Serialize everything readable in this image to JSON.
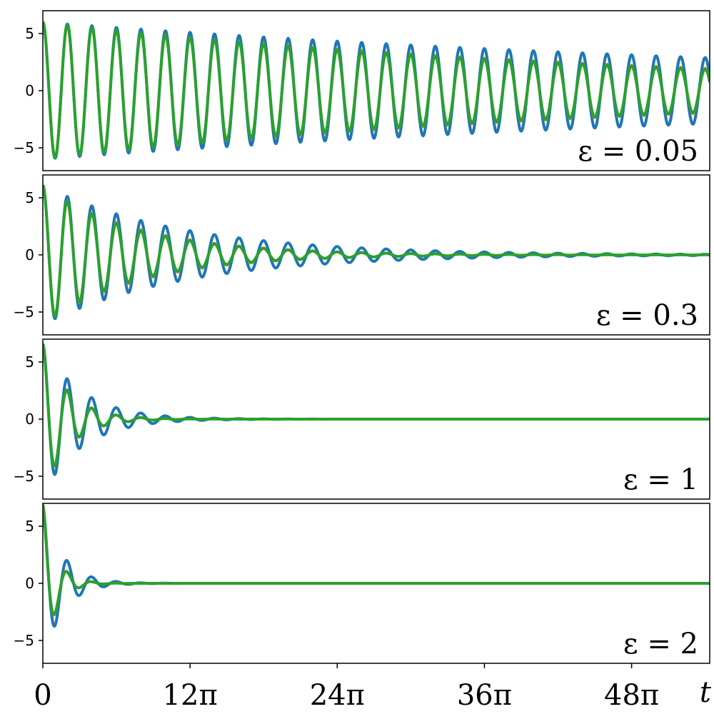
{
  "chart_data": {
    "type": "line",
    "x_axis": {
      "label": "t",
      "range": [
        0,
        170.8
      ],
      "ticks": [
        0,
        37.699,
        75.398,
        113.097,
        150.796
      ],
      "tick_labels": [
        "0",
        "12π",
        "24π",
        "36π",
        "48π"
      ]
    },
    "colors": {
      "series_1": "#1f77b4",
      "series_2": "#ff7f0e",
      "series_3": "#2ca02c"
    },
    "panels": [
      {
        "label": "ε = 0.05",
        "ylim": [
          -7,
          7
        ],
        "yticks": [
          -5,
          0,
          5
        ],
        "ytick_labels": [
          "−5",
          "0",
          "5"
        ],
        "series": [
          {
            "color": "#1f77b4",
            "amplitude": 6.0,
            "decay": 0.0043,
            "period": 6.283,
            "phase": 0.0
          },
          {
            "color": "#ff7f0e",
            "amplitude": 6.0,
            "decay": 0.0065,
            "period": 6.283,
            "phase": 0.0
          },
          {
            "color": "#2ca02c",
            "amplitude": 6.0,
            "decay": 0.0068,
            "period": 6.283,
            "phase": 0.0
          }
        ]
      },
      {
        "label": "ε = 0.3",
        "ylim": [
          -7,
          7
        ],
        "yticks": [
          -5,
          0,
          5
        ],
        "ytick_labels": [
          "−5",
          "0",
          "5"
        ],
        "series": [
          {
            "color": "#1f77b4",
            "amplitude": 6.1,
            "decay": 0.028,
            "period": 6.283,
            "phase": 0.0
          },
          {
            "color": "#ff7f0e",
            "amplitude": 6.1,
            "decay": 0.04,
            "period": 6.283,
            "phase": 0.0
          },
          {
            "color": "#2ca02c",
            "amplitude": 6.1,
            "decay": 0.042,
            "period": 6.283,
            "phase": 0.0
          }
        ]
      },
      {
        "label": "ε = 1",
        "ylim": [
          -7,
          7
        ],
        "yticks": [
          -5,
          0,
          5
        ],
        "ytick_labels": [
          "−5",
          "0",
          "5"
        ],
        "series": [
          {
            "color": "#1f77b4",
            "amplitude": 6.6,
            "decay": 0.1,
            "period": 6.283,
            "phase": 0.0
          },
          {
            "color": "#ff7f0e",
            "amplitude": 6.6,
            "decay": 0.15,
            "period": 6.283,
            "phase": 0.0
          },
          {
            "color": "#2ca02c",
            "amplitude": 6.6,
            "decay": 0.155,
            "period": 6.283,
            "phase": 0.0
          }
        ]
      },
      {
        "label": "ε = 2",
        "ylim": [
          -7,
          7
        ],
        "yticks": [
          -5,
          0,
          5
        ],
        "ytick_labels": [
          "−5",
          "0",
          "5"
        ],
        "series": [
          {
            "color": "#1f77b4",
            "amplitude": 6.9,
            "decay": 0.2,
            "period": 6.283,
            "phase": 0.0
          },
          {
            "color": "#ff7f0e",
            "amplitude": 6.9,
            "decay": 0.3,
            "period": 6.283,
            "phase": 0.0
          },
          {
            "color": "#2ca02c",
            "amplitude": 6.9,
            "decay": 0.31,
            "period": 6.283,
            "phase": 0.0
          }
        ]
      }
    ]
  }
}
